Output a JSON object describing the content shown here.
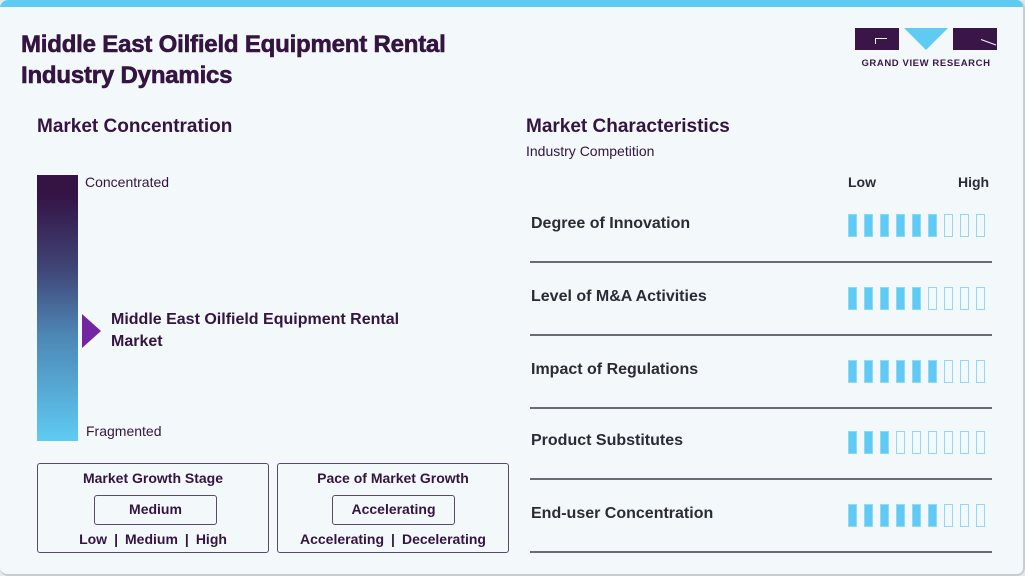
{
  "header": {
    "title": "Middle East Oilfield Equipment Rental Industry Dynamics",
    "logo_text": "GRAND VIEW RESEARCH"
  },
  "colors": {
    "accent": "#5fcbf3",
    "brand_dark": "#341441",
    "pointer": "#7226a2"
  },
  "market_concentration": {
    "heading": "Market Concentration",
    "top_label": "Concentrated",
    "bottom_label": "Fragmented",
    "market_label": "Middle East Oilfield Equipment Rental Market"
  },
  "growth_stage": {
    "title": "Market Growth Stage",
    "value": "Medium",
    "options": [
      "Low",
      "Medium",
      "High"
    ]
  },
  "growth_pace": {
    "title": "Pace of Market Growth",
    "value": "Accelerating",
    "options": [
      "Accelerating",
      "Decelerating"
    ]
  },
  "market_characteristics": {
    "heading": "Market Characteristics",
    "subheading": "Industry Competition",
    "scale_low": "Low",
    "scale_high": "High",
    "max_level": 9,
    "rows": [
      {
        "label": "Degree of Innovation",
        "level": 6
      },
      {
        "label": "Level of M&A Activities",
        "level": 5
      },
      {
        "label": "Impact of Regulations",
        "level": 6
      },
      {
        "label": "Product Substitutes",
        "level": 3
      },
      {
        "label": "End-user Concentration",
        "level": 6
      }
    ]
  },
  "chart_data": {
    "type": "bar",
    "title": "Market Characteristics - Industry Competition",
    "categories": [
      "Degree of Innovation",
      "Level of M&A Activities",
      "Impact of Regulations",
      "Product Substitutes",
      "End-user Concentration"
    ],
    "values": [
      6,
      5,
      6,
      3,
      6
    ],
    "xlabel": "",
    "ylabel": "Level (Low to High)",
    "ylim": [
      0,
      9
    ]
  }
}
